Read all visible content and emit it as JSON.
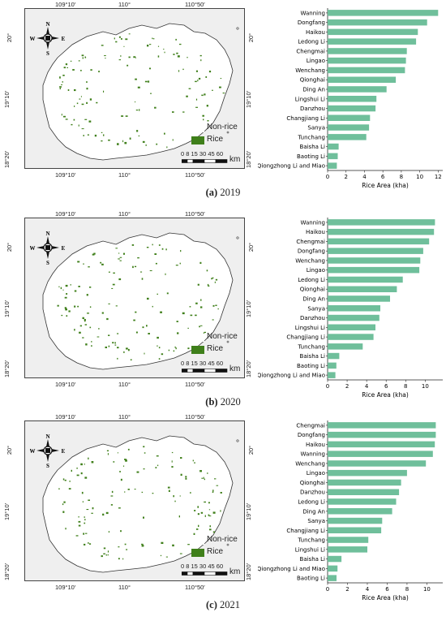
{
  "panels": [
    {
      "caption_letter": "(a)",
      "caption_year": "2019",
      "map": {
        "top_ticks": [
          "109°10′",
          "110°",
          "110°50′"
        ],
        "bottom_ticks": [
          "109°10′",
          "110°",
          "110°50′"
        ],
        "left_ticks": [
          "20°",
          "19°10′",
          "18°20′"
        ],
        "right_ticks": [
          "20°",
          "19°10′",
          "18°20′"
        ],
        "legend_nonrice": "Non-rice",
        "legend_rice": "Rice",
        "scale_labels": "0 8 15   30   45   60",
        "scale_unit": "km",
        "compass": {
          "n": "N",
          "s": "S",
          "e": "E",
          "w": "W"
        }
      }
    },
    {
      "caption_letter": "(b)",
      "caption_year": "2020",
      "map": {
        "top_ticks": [
          "109°10′",
          "110°",
          "110°50′"
        ],
        "bottom_ticks": [
          "109°10′",
          "110°",
          "110°50′"
        ],
        "left_ticks": [
          "20°",
          "19°10′",
          "18°20′"
        ],
        "right_ticks": [
          "20°",
          "19°10′",
          "18°20′"
        ],
        "legend_nonrice": "Non-rice",
        "legend_rice": "Rice",
        "scale_labels": "0 8 15   30   45   60",
        "scale_unit": "km",
        "compass": {
          "n": "N",
          "s": "S",
          "e": "E",
          "w": "W"
        }
      }
    },
    {
      "caption_letter": "(c)",
      "caption_year": "2021",
      "map": {
        "top_ticks": [
          "109°10′",
          "110°",
          "110°50′"
        ],
        "bottom_ticks": [
          "109°10′",
          "110°",
          "110°50′"
        ],
        "left_ticks": [
          "20°",
          "19°10′",
          "18°20′"
        ],
        "right_ticks": [
          "20°",
          "19°10′",
          "18°20′"
        ],
        "legend_nonrice": "Non-rice",
        "legend_rice": "Rice",
        "scale_labels": "0 8 15   30   45   60",
        "scale_unit": "km",
        "compass": {
          "n": "N",
          "s": "S",
          "e": "E",
          "w": "W"
        }
      }
    }
  ],
  "colors": {
    "bar": "#6fbf9b",
    "rice": "#3f7f1a",
    "map_bg": "#efefef"
  },
  "chart_data": [
    {
      "type": "bar",
      "orientation": "horizontal",
      "xlabel": "Rice Area (kha)",
      "xlim": [
        0,
        12.5
      ],
      "xticks": [
        0,
        2,
        4,
        6,
        8,
        10,
        12
      ],
      "categories": [
        "Wanning",
        "Dongfang",
        "Haikou",
        "Ledong Li",
        "Chengmai",
        "Lingao",
        "Wenchang",
        "Qionghai",
        "Ding An",
        "Lingshui Li",
        "Danzhou",
        "Changjiang Li",
        "Sanya",
        "Tunchang",
        "Baisha Li",
        "Baoting Li",
        "Qiongzhong Li and Miao"
      ],
      "values": [
        12.0,
        10.8,
        9.8,
        9.6,
        8.6,
        8.5,
        8.4,
        7.4,
        6.4,
        5.3,
        5.2,
        4.6,
        4.5,
        4.2,
        1.2,
        1.1,
        1.0
      ]
    },
    {
      "type": "bar",
      "orientation": "horizontal",
      "xlabel": "Rice Area (kha)",
      "xlim": [
        0,
        11.8
      ],
      "xticks": [
        0,
        2,
        4,
        6,
        8,
        10
      ],
      "categories": [
        "Wanning",
        "Haikou",
        "Chengmai",
        "Dongfang",
        "Wenchang",
        "Lingao",
        "Ledong Li",
        "Qionghai",
        "Ding An",
        "Sanya",
        "Danzhou",
        "Lingshui Li",
        "Changjiang Li",
        "Tunchang",
        "Baisha Li",
        "Baoting Li",
        "Qiongzhong Li and Miao"
      ],
      "values": [
        11.0,
        10.9,
        10.4,
        9.8,
        9.5,
        9.4,
        7.7,
        7.1,
        6.4,
        5.4,
        5.3,
        4.9,
        4.7,
        3.6,
        1.2,
        0.9,
        0.8
      ]
    },
    {
      "type": "bar",
      "orientation": "horizontal",
      "xlabel": "Rice Area (kha)",
      "xlim": [
        0,
        11.6
      ],
      "xticks": [
        0,
        2,
        4,
        6,
        8,
        10
      ],
      "categories": [
        "Chengmai",
        "Dongfang",
        "Haikou",
        "Wanning",
        "Wenchang",
        "Lingao",
        "Qionghai",
        "Danzhou",
        "Ledong Li",
        "Ding An",
        "Sanya",
        "Changjiang Li",
        "Tunchang",
        "Lingshui Li",
        "Baisha Li",
        "Qiongzhong Li and Miao",
        "Baoting Li"
      ],
      "values": [
        10.9,
        10.9,
        10.8,
        10.6,
        9.9,
        8.0,
        7.4,
        7.2,
        6.9,
        6.5,
        5.5,
        5.4,
        4.1,
        4.0,
        1.4,
        1.0,
        0.9
      ]
    }
  ]
}
